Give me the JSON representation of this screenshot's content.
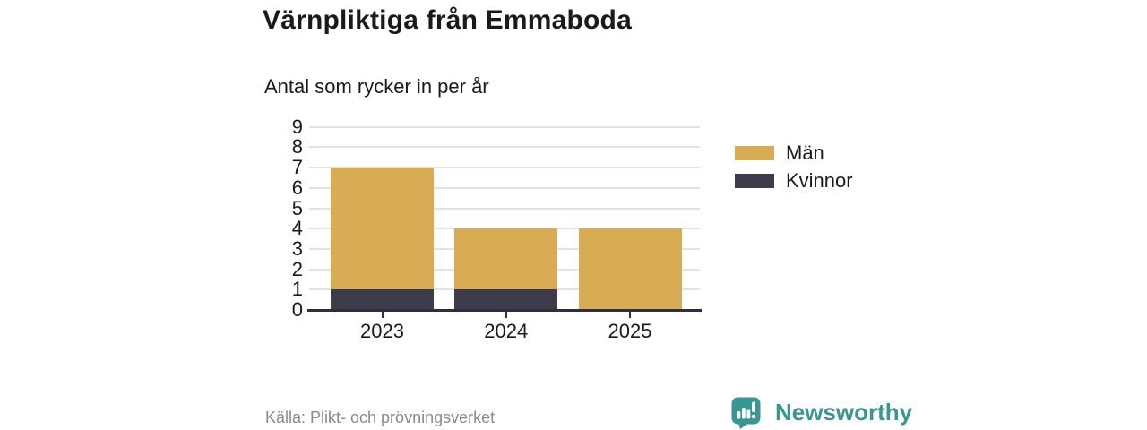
{
  "header": {
    "title": "Värnpliktiga från Emmaboda",
    "subtitle": "Antal som rycker in per år"
  },
  "chart_data": {
    "type": "bar",
    "stacked": true,
    "title": "Värnpliktiga från Emmaboda",
    "subtitle": "Antal som rycker in per år",
    "categories": [
      "2023",
      "2024",
      "2025"
    ],
    "series": [
      {
        "name": "Kvinnor",
        "values": [
          1,
          1,
          0
        ],
        "color": "#3E3C4B"
      },
      {
        "name": "Män",
        "values": [
          6,
          3,
          4
        ],
        "color": "#D9AB55"
      }
    ],
    "totals": [
      7,
      4,
      4
    ],
    "xlabel": "",
    "ylabel": "",
    "ylim": [
      0,
      9
    ],
    "yticks": [
      0,
      1,
      2,
      3,
      4,
      5,
      6,
      7,
      8,
      9
    ],
    "grid": "horizontal",
    "legend_position": "right"
  },
  "legend": {
    "items": [
      {
        "label": "Män",
        "color": "#D9AB55"
      },
      {
        "label": "Kvinnor",
        "color": "#3E3C4B"
      }
    ]
  },
  "footer": {
    "source": "Källa: Plikt- och prövningsverket",
    "brand": "Newsworthy",
    "brand_icon": "newsworthy-badge-bar-chart-icon"
  },
  "colors": {
    "men": "#D9AB55",
    "women": "#3E3C4B",
    "axis": "#302E3C",
    "gridline": "#E3E3E3",
    "text": "#1A1A1A",
    "source_text": "#8A8A8A",
    "brand_teal": "#399693",
    "background": "#FFFFFF"
  }
}
